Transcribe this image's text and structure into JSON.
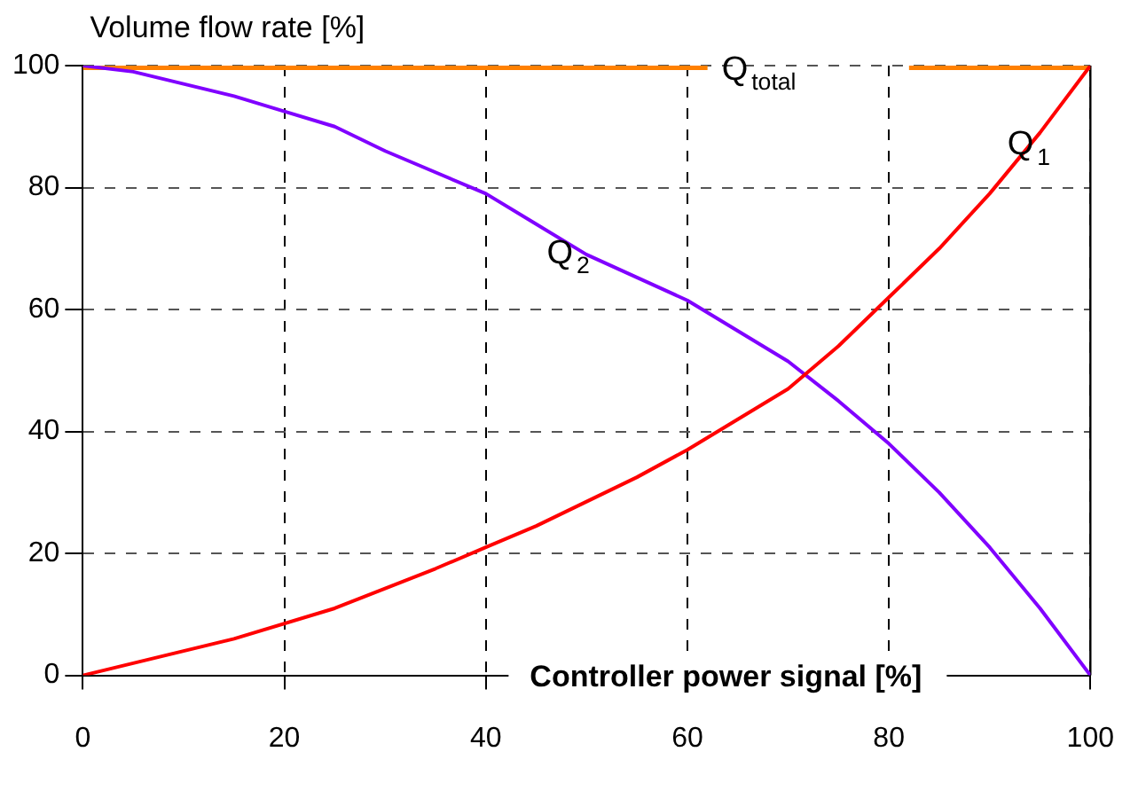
{
  "chart_data": {
    "type": "line",
    "xlabel": "Controller power signal [%]",
    "ylabel": "Volume flow rate [%]",
    "xlim": [
      0,
      100
    ],
    "xticks": [
      0,
      20,
      40,
      60,
      80,
      100
    ],
    "ylim": [
      0,
      100
    ],
    "yticks": [
      0,
      20,
      40,
      60,
      80,
      100
    ],
    "grid": true,
    "legend": false,
    "marker": "none",
    "line_style": "solid",
    "series": [
      {
        "name": "Q$_{total}$",
        "color": "#ff8000",
        "x": [
          0,
          62,
          72,
          82,
          100
        ],
        "values": [
          100,
          100,
          null,
          100,
          100
        ]
      },
      {
        "name": "Q$_{1}$",
        "color": "#ff0000",
        "x": [
          0,
          5,
          15,
          25,
          35,
          40,
          45,
          55,
          60,
          70,
          75,
          80,
          85,
          90,
          95,
          100
        ],
        "values": [
          0,
          2,
          6,
          11,
          17.5,
          21,
          24.5,
          32.5,
          37,
          47,
          54,
          62,
          70,
          79,
          89,
          100
        ]
      },
      {
        "name": "Q$_{2}$",
        "color": "#8000ff",
        "x": [
          0,
          5,
          15,
          20,
          25,
          30,
          40,
          45,
          50,
          60,
          70,
          75,
          80,
          85,
          90,
          95,
          100
        ],
        "values": [
          100,
          99,
          95,
          92.5,
          90,
          86,
          79,
          74,
          69,
          61.5,
          51.5,
          45,
          38,
          30,
          21,
          11,
          0
        ]
      }
    ]
  }
}
